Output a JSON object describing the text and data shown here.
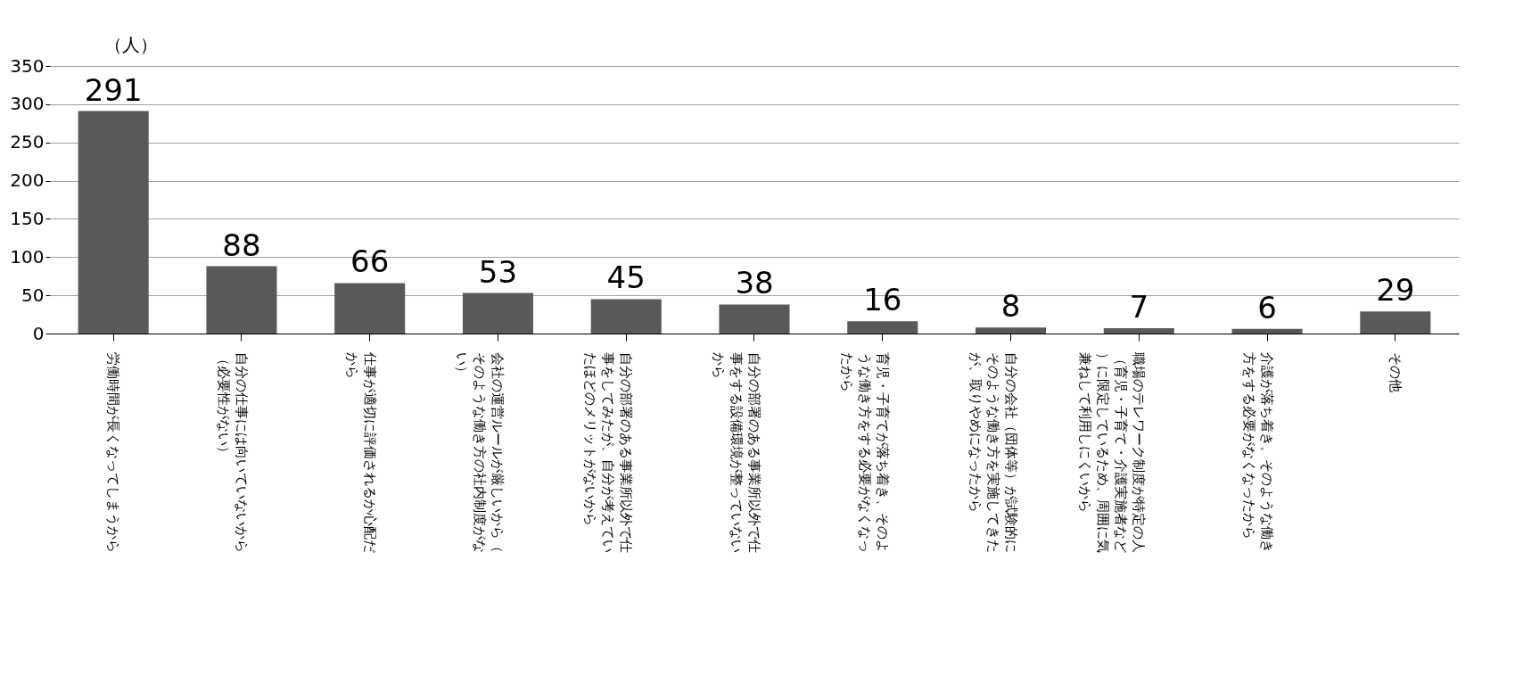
{
  "chart_data": {
    "type": "bar",
    "ylabel": "（人）",
    "categories": [
      "労働時間が長くなってしまうから",
      "自分の仕事には向いていないから（必要性がない）",
      "仕事が適切に評価されるか心配だから",
      "会社の運営ルールが厳しいから（そのような働き方の社内制度がない）",
      "自分の部署のある事業所以外で仕事をしてみたが、自分が考えていたほどのメリットがないから",
      "自分の部署のある事業所以外で仕事をする設備環境が整っていないから",
      "育児・子育てが落ち着き、そのような働き方をする必要がなくなったから",
      "自分の会社（団体等）が試験的にそのような働き方を実施してきたが、取りやめになったから",
      "職場のテレワーク制度が特定の人（育児・子育て・介護実施者など）に限定しているため、周囲に気兼ねして利用しにくいから",
      "介護が落ち着き、そのような働き方をする必要がなくなったから",
      "その他"
    ],
    "values": [
      291,
      88,
      66,
      53,
      45,
      38,
      16,
      8,
      7,
      6,
      29
    ],
    "color": "#595959",
    "ylim": [
      0,
      350
    ],
    "yticks": [
      0,
      50,
      100,
      150,
      200,
      250,
      300,
      350
    ],
    "grid": "y",
    "data_labels": true
  }
}
